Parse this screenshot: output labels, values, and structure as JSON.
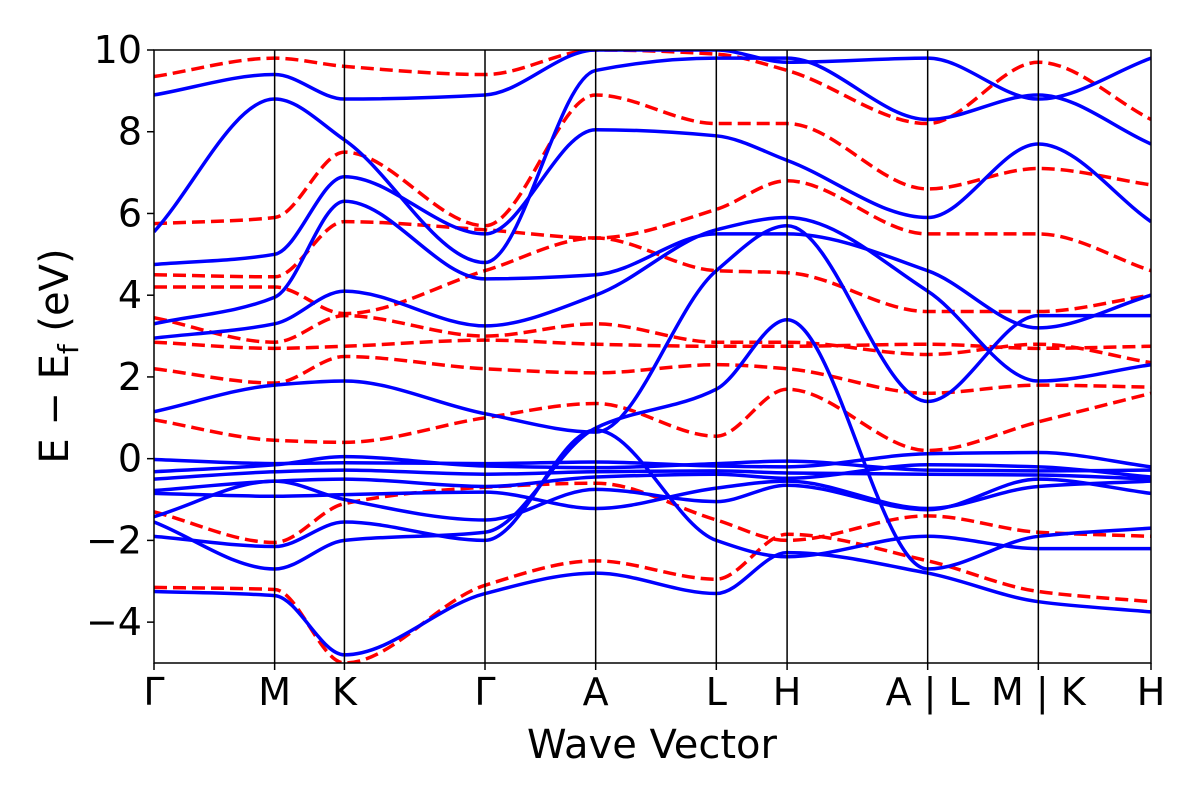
{
  "chart_data": {
    "type": "line",
    "title": "",
    "xlabel": "Wave Vector",
    "ylabel_main": "E − E",
    "ylabel_sub": "f",
    "ylabel_unit": " (eV)",
    "ylim": [
      -5,
      10
    ],
    "yticks": [
      -4,
      -2,
      0,
      2,
      4,
      6,
      8,
      10
    ],
    "ytick_labels": [
      "−4",
      "−2",
      "0",
      "2",
      "4",
      "6",
      "8",
      "10"
    ],
    "xlim": [
      0,
      10
    ],
    "kpoints": [
      {
        "label": "Γ",
        "x": 0
      },
      {
        "label": "M",
        "x": 1.21
      },
      {
        "label": "K",
        "x": 1.91
      },
      {
        "label": "Γ",
        "x": 3.32
      },
      {
        "label": "A",
        "x": 4.43
      },
      {
        "label": "L",
        "x": 5.64
      },
      {
        "label": "H",
        "x": 6.35
      },
      {
        "label": "A | L",
        "x": 7.76
      },
      {
        "label": "M | K",
        "x": 8.87
      },
      {
        "label": "H",
        "x": 10
      }
    ],
    "grid": false,
    "legend": "none",
    "series": [
      {
        "style": "solid",
        "color": "#0000ff",
        "bands": [
          [
            [
              0,
              -0.02
            ],
            [
              1.21,
              -0.12
            ],
            [
              1.91,
              -0.1
            ],
            [
              3.32,
              -0.12
            ],
            [
              4.43,
              -0.08
            ],
            [
              5.64,
              -0.18
            ],
            [
              6.35,
              -0.2
            ],
            [
              7.76,
              0.12
            ],
            [
              8.87,
              0.15
            ],
            [
              10,
              -0.2
            ]
          ],
          [
            [
              0,
              -0.32
            ],
            [
              1.21,
              -0.15
            ],
            [
              1.91,
              0.05
            ],
            [
              3.32,
              -0.18
            ],
            [
              4.43,
              -0.22
            ],
            [
              5.64,
              -0.12
            ],
            [
              6.35,
              -0.06
            ],
            [
              7.76,
              -0.28
            ],
            [
              8.87,
              -0.3
            ],
            [
              10,
              -0.28
            ]
          ],
          [
            [
              0,
              -0.5
            ],
            [
              1.21,
              -0.32
            ],
            [
              1.91,
              -0.28
            ],
            [
              3.32,
              -0.38
            ],
            [
              4.43,
              -0.32
            ],
            [
              5.64,
              -0.3
            ],
            [
              6.35,
              -0.35
            ],
            [
              7.76,
              -0.38
            ],
            [
              8.87,
              -0.4
            ],
            [
              10,
              -0.5
            ]
          ],
          [
            [
              0,
              -0.78
            ],
            [
              1.21,
              -0.55
            ],
            [
              1.91,
              -0.5
            ],
            [
              3.32,
              -0.68
            ],
            [
              4.43,
              -0.45
            ],
            [
              5.64,
              -0.38
            ],
            [
              6.35,
              -0.48
            ],
            [
              7.76,
              -0.15
            ],
            [
              8.87,
              -0.2
            ],
            [
              10,
              -0.45
            ]
          ],
          [
            [
              0,
              -0.85
            ],
            [
              1.21,
              -0.92
            ],
            [
              1.91,
              -0.88
            ],
            [
              3.32,
              -0.82
            ],
            [
              4.43,
              -1.22
            ],
            [
              5.64,
              -0.72
            ],
            [
              6.35,
              -0.55
            ],
            [
              7.76,
              -1.22
            ],
            [
              8.87,
              -0.68
            ],
            [
              10,
              -0.55
            ]
          ],
          [
            [
              0,
              -1.42
            ],
            [
              1.21,
              -0.55
            ],
            [
              1.91,
              -1.0
            ],
            [
              3.32,
              -1.5
            ],
            [
              4.43,
              -0.75
            ],
            [
              5.64,
              -1.05
            ],
            [
              6.35,
              -0.65
            ],
            [
              7.76,
              -1.25
            ],
            [
              8.87,
              -0.5
            ],
            [
              10,
              -0.85
            ]
          ],
          [
            [
              0,
              -1.9
            ],
            [
              1.21,
              -2.15
            ],
            [
              1.91,
              -1.55
            ],
            [
              3.32,
              -2.0
            ],
            [
              4.43,
              0.7
            ],
            [
              5.64,
              -2.0
            ],
            [
              6.35,
              -2.4
            ],
            [
              7.76,
              -1.9
            ],
            [
              8.87,
              -2.2
            ],
            [
              10,
              -2.2
            ]
          ],
          [
            [
              0,
              -1.55
            ],
            [
              1.21,
              -2.7
            ],
            [
              1.91,
              -2.0
            ],
            [
              3.32,
              -1.8
            ],
            [
              4.43,
              0.75
            ],
            [
              5.64,
              1.7
            ],
            [
              6.35,
              3.4
            ],
            [
              7.76,
              -2.7
            ],
            [
              8.87,
              -1.9
            ],
            [
              10,
              -1.7
            ]
          ],
          [
            [
              0,
              -3.25
            ],
            [
              1.21,
              -3.35
            ],
            [
              1.91,
              -4.8
            ],
            [
              3.32,
              -3.3
            ],
            [
              4.43,
              -2.8
            ],
            [
              5.64,
              -3.3
            ],
            [
              6.35,
              -2.3
            ],
            [
              7.76,
              -2.8
            ],
            [
              8.87,
              -3.5
            ],
            [
              10,
              -3.75
            ]
          ],
          [
            [
              0,
              1.15
            ],
            [
              1.21,
              1.8
            ],
            [
              1.91,
              1.9
            ],
            [
              3.32,
              1.1
            ],
            [
              4.43,
              0.65
            ],
            [
              5.64,
              4.6
            ],
            [
              6.35,
              5.7
            ],
            [
              7.76,
              1.4
            ],
            [
              8.87,
              3.5
            ],
            [
              10,
              3.5
            ]
          ],
          [
            [
              0,
              2.95
            ],
            [
              1.21,
              3.3
            ],
            [
              1.91,
              4.1
            ],
            [
              3.32,
              3.25
            ],
            [
              4.43,
              4.0
            ],
            [
              5.64,
              5.6
            ],
            [
              6.35,
              5.9
            ],
            [
              7.76,
              4.1
            ],
            [
              8.87,
              1.9
            ],
            [
              10,
              2.3
            ]
          ],
          [
            [
              0,
              3.3
            ],
            [
              1.21,
              3.95
            ],
            [
              1.91,
              6.3
            ],
            [
              3.32,
              4.4
            ],
            [
              4.43,
              4.5
            ],
            [
              5.64,
              5.5
            ],
            [
              6.35,
              5.5
            ],
            [
              7.76,
              4.6
            ],
            [
              8.87,
              3.2
            ],
            [
              10,
              4.0
            ]
          ],
          [
            [
              0,
              4.75
            ],
            [
              1.21,
              5.0
            ],
            [
              1.91,
              6.9
            ],
            [
              3.32,
              5.5
            ],
            [
              4.43,
              8.05
            ],
            [
              5.64,
              7.9
            ],
            [
              6.35,
              7.3
            ],
            [
              7.76,
              5.9
            ],
            [
              8.87,
              7.7
            ],
            [
              10,
              5.8
            ]
          ],
          [
            [
              0,
              5.55
            ],
            [
              1.21,
              8.8
            ],
            [
              1.91,
              7.8
            ],
            [
              3.32,
              4.8
            ],
            [
              4.43,
              9.5
            ],
            [
              5.64,
              9.8
            ],
            [
              6.35,
              9.8
            ],
            [
              7.76,
              8.3
            ],
            [
              8.87,
              8.9
            ],
            [
              10,
              7.7
            ]
          ],
          [
            [
              0,
              8.9
            ],
            [
              1.21,
              9.4
            ],
            [
              1.91,
              8.8
            ],
            [
              3.32,
              8.9
            ],
            [
              4.43,
              10.0
            ],
            [
              5.64,
              10.0
            ],
            [
              6.35,
              9.7
            ],
            [
              7.76,
              9.8
            ],
            [
              8.87,
              8.8
            ],
            [
              10,
              9.8
            ]
          ]
        ]
      },
      {
        "style": "dashed",
        "color": "#ff0000",
        "bands": [
          [
            [
              0,
              -3.15
            ],
            [
              1.21,
              -3.2
            ],
            [
              1.91,
              -5.0
            ],
            [
              3.32,
              -3.1
            ],
            [
              4.43,
              -2.5
            ],
            [
              5.64,
              -2.95
            ],
            [
              6.35,
              -1.85
            ],
            [
              7.76,
              -2.5
            ],
            [
              8.87,
              -3.25
            ],
            [
              10,
              -3.5
            ]
          ],
          [
            [
              0,
              -1.3
            ],
            [
              1.21,
              -2.05
            ],
            [
              1.91,
              -1.1
            ],
            [
              3.32,
              -0.7
            ],
            [
              4.43,
              -0.6
            ],
            [
              5.64,
              -1.5
            ],
            [
              6.35,
              -2.0
            ],
            [
              7.76,
              -1.4
            ],
            [
              8.87,
              -1.8
            ],
            [
              10,
              -1.9
            ]
          ],
          [
            [
              0,
              0.95
            ],
            [
              1.21,
              0.45
            ],
            [
              1.91,
              0.4
            ],
            [
              3.32,
              1.0
            ],
            [
              4.43,
              1.35
            ],
            [
              5.64,
              0.55
            ],
            [
              6.35,
              1.7
            ],
            [
              7.76,
              0.2
            ],
            [
              8.87,
              0.9
            ],
            [
              10,
              1.6
            ]
          ],
          [
            [
              0,
              2.2
            ],
            [
              1.21,
              1.85
            ],
            [
              1.91,
              2.5
            ],
            [
              3.32,
              2.2
            ],
            [
              4.43,
              2.1
            ],
            [
              5.64,
              2.3
            ],
            [
              6.35,
              2.2
            ],
            [
              7.76,
              1.6
            ],
            [
              8.87,
              1.8
            ],
            [
              10,
              1.75
            ]
          ],
          [
            [
              0,
              2.85
            ],
            [
              1.21,
              2.7
            ],
            [
              1.91,
              2.75
            ],
            [
              3.32,
              2.9
            ],
            [
              4.43,
              2.8
            ],
            [
              5.64,
              2.75
            ],
            [
              6.35,
              2.75
            ],
            [
              7.76,
              2.8
            ],
            [
              8.87,
              2.7
            ],
            [
              10,
              2.75
            ]
          ],
          [
            [
              0,
              3.45
            ],
            [
              1.21,
              2.85
            ],
            [
              1.91,
              3.5
            ],
            [
              3.32,
              3.0
            ],
            [
              4.43,
              3.3
            ],
            [
              5.64,
              2.85
            ],
            [
              6.35,
              2.85
            ],
            [
              7.76,
              2.55
            ],
            [
              8.87,
              2.8
            ],
            [
              10,
              2.35
            ]
          ],
          [
            [
              0,
              4.2
            ],
            [
              1.21,
              4.2
            ],
            [
              1.91,
              3.55
            ],
            [
              3.32,
              4.6
            ],
            [
              4.43,
              5.4
            ],
            [
              5.64,
              4.6
            ],
            [
              6.35,
              4.55
            ],
            [
              7.76,
              3.6
            ],
            [
              8.87,
              3.6
            ],
            [
              10,
              4.0
            ]
          ],
          [
            [
              0,
              4.5
            ],
            [
              1.21,
              4.45
            ],
            [
              1.91,
              5.8
            ],
            [
              3.32,
              5.6
            ],
            [
              4.43,
              5.4
            ],
            [
              5.64,
              6.1
            ],
            [
              6.35,
              6.8
            ],
            [
              7.76,
              5.5
            ],
            [
              8.87,
              5.5
            ],
            [
              10,
              4.6
            ]
          ],
          [
            [
              0,
              5.75
            ],
            [
              1.21,
              5.9
            ],
            [
              1.91,
              7.5
            ],
            [
              3.32,
              5.7
            ],
            [
              4.43,
              8.9
            ],
            [
              5.64,
              8.2
            ],
            [
              6.35,
              8.2
            ],
            [
              7.76,
              6.6
            ],
            [
              8.87,
              7.1
            ],
            [
              10,
              6.7
            ]
          ],
          [
            [
              0,
              9.35
            ],
            [
              1.21,
              9.8
            ],
            [
              1.91,
              9.6
            ],
            [
              3.32,
              9.4
            ],
            [
              4.43,
              10.0
            ],
            [
              5.64,
              9.9
            ],
            [
              6.35,
              9.5
            ],
            [
              7.76,
              8.2
            ],
            [
              8.87,
              9.7
            ],
            [
              10,
              8.3
            ]
          ]
        ]
      }
    ]
  }
}
